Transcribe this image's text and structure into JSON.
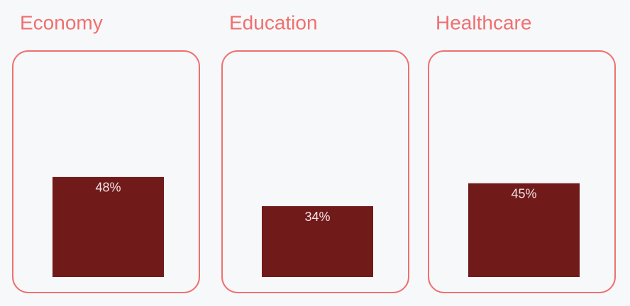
{
  "chart_data": {
    "type": "bar",
    "categories": [
      "Economy",
      "Education",
      "Healthcare"
    ],
    "values": [
      48,
      34,
      45
    ],
    "value_labels": [
      "48%",
      "34%",
      "45%"
    ],
    "color": "#701a1a",
    "ylim": [
      0,
      100
    ]
  }
}
